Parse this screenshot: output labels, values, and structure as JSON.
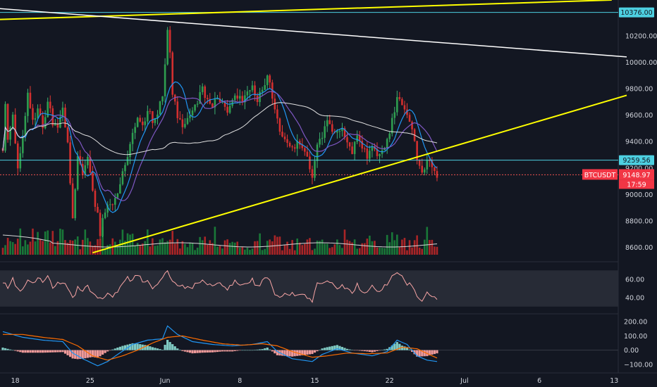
{
  "chart_data": {
    "type": "candlestick",
    "symbol_badge": "BTCUSDT",
    "price_badge": "9148.97",
    "countdown_badge": "17:59",
    "last_price": 9148.97,
    "horizontal_levels": [
      {
        "label": "10376.00",
        "value": 10376.0
      },
      {
        "label": "9259.56",
        "value": 9259.56
      }
    ],
    "price_axis": {
      "ticks": [
        "10200.00",
        "10000.00",
        "9800.00",
        "9600.00",
        "9400.00",
        "9200.00",
        "9000.00",
        "8800.00",
        "8600.00"
      ],
      "tick_values": [
        10200,
        10000,
        9800,
        9600,
        9400,
        9200,
        9000,
        8800,
        8600
      ],
      "range": [
        8545,
        10470
      ]
    },
    "rsi_panel": {
      "ticks": [
        "60.00",
        "40.00"
      ],
      "tick_values": [
        60,
        40
      ],
      "band": [
        30,
        70
      ],
      "range": [
        22,
        78
      ]
    },
    "macd_panel": {
      "ticks": [
        "200.00",
        "100.00",
        "0.00",
        "−100.00"
      ],
      "tick_values": [
        200,
        100,
        0,
        -100
      ],
      "range": [
        -150,
        245
      ]
    },
    "time_axis": {
      "ticks": [
        "18",
        "25",
        "Jun",
        "8",
        "15",
        "22",
        "Jul",
        "6",
        "13"
      ],
      "bar_index": [
        2.5,
        17.5,
        32.5,
        47.5,
        62.5,
        77.5,
        92.5,
        107.5,
        122.5
      ]
    },
    "trendlines": [
      {
        "color": "#ffff00",
        "from": [
          -23,
          10296
        ],
        "to": [
          122,
          10470
        ]
      },
      {
        "color": "#ffff00",
        "from": [
          18,
          8560
        ],
        "to": [
          125,
          9750
        ]
      },
      {
        "color": "#ffffff",
        "from": [
          -23,
          10470
        ],
        "to": [
          125,
          10040
        ]
      }
    ],
    "price_path": [
      [
        0,
        9350
      ],
      [
        0.5,
        9700
      ],
      [
        1,
        9400
      ],
      [
        2,
        9600
      ],
      [
        3,
        9200
      ],
      [
        4,
        9450
      ],
      [
        5,
        9750
      ],
      [
        6,
        9550
      ],
      [
        7,
        9650
      ],
      [
        8,
        9500
      ],
      [
        9,
        9700
      ],
      [
        10,
        9550
      ],
      [
        11,
        9500
      ],
      [
        12,
        9650
      ],
      [
        13,
        9400
      ],
      [
        14,
        8800
      ],
      [
        15,
        9300
      ],
      [
        16,
        9150
      ],
      [
        17,
        9300
      ],
      [
        18,
        9000
      ],
      [
        19,
        8850
      ],
      [
        19.5,
        8700
      ],
      [
        20,
        8800
      ],
      [
        21,
        8900
      ],
      [
        22,
        8950
      ],
      [
        23,
        9000
      ],
      [
        24,
        9150
      ],
      [
        25,
        9300
      ],
      [
        26,
        9450
      ],
      [
        27,
        9600
      ],
      [
        28,
        9500
      ],
      [
        29,
        9650
      ],
      [
        30,
        9550
      ],
      [
        31,
        9600
      ],
      [
        32,
        9750
      ],
      [
        33,
        10250
      ],
      [
        33.5,
        10100
      ],
      [
        34,
        9750
      ],
      [
        35,
        9600
      ],
      [
        36,
        9500
      ],
      [
        37,
        9550
      ],
      [
        38,
        9650
      ],
      [
        39,
        9700
      ],
      [
        40,
        9800
      ],
      [
        41,
        9700
      ],
      [
        42,
        9650
      ],
      [
        43,
        9750
      ],
      [
        44,
        9700
      ],
      [
        45,
        9600
      ],
      [
        46,
        9700
      ],
      [
        47,
        9750
      ],
      [
        48,
        9700
      ],
      [
        49,
        9750
      ],
      [
        50,
        9800
      ],
      [
        51,
        9700
      ],
      [
        52,
        9800
      ],
      [
        53,
        9900
      ],
      [
        54,
        9750
      ],
      [
        55,
        9550
      ],
      [
        56,
        9450
      ],
      [
        57,
        9400
      ],
      [
        58,
        9350
      ],
      [
        59,
        9400
      ],
      [
        60,
        9350
      ],
      [
        61,
        9300
      ],
      [
        62,
        9100
      ],
      [
        63,
        9350
      ],
      [
        64,
        9450
      ],
      [
        65,
        9550
      ],
      [
        66,
        9500
      ],
      [
        67,
        9450
      ],
      [
        68,
        9500
      ],
      [
        69,
        9400
      ],
      [
        70,
        9300
      ],
      [
        71,
        9450
      ],
      [
        72,
        9350
      ],
      [
        73,
        9300
      ],
      [
        74,
        9350
      ],
      [
        75,
        9300
      ],
      [
        76,
        9350
      ],
      [
        77,
        9400
      ],
      [
        78,
        9550
      ],
      [
        79,
        9750
      ],
      [
        80,
        9700
      ],
      [
        81,
        9600
      ],
      [
        82,
        9500
      ],
      [
        83,
        9250
      ],
      [
        84,
        9150
      ],
      [
        85,
        9250
      ],
      [
        86,
        9200
      ],
      [
        87,
        9149
      ]
    ],
    "rsi_path": [
      [
        0,
        58
      ],
      [
        1,
        52
      ],
      [
        2,
        60
      ],
      [
        3,
        50
      ],
      [
        4,
        48
      ],
      [
        5,
        60
      ],
      [
        6,
        55
      ],
      [
        7,
        64
      ],
      [
        8,
        55
      ],
      [
        9,
        62
      ],
      [
        10,
        52
      ],
      [
        11,
        55
      ],
      [
        12,
        58
      ],
      [
        13,
        50
      ],
      [
        14,
        38
      ],
      [
        15,
        52
      ],
      [
        16,
        46
      ],
      [
        17,
        52
      ],
      [
        18,
        44
      ],
      [
        19,
        37
      ],
      [
        20,
        40
      ],
      [
        21,
        44
      ],
      [
        22,
        42
      ],
      [
        23,
        48
      ],
      [
        24,
        55
      ],
      [
        25,
        62
      ],
      [
        26,
        58
      ],
      [
        27,
        66
      ],
      [
        28,
        58
      ],
      [
        29,
        60
      ],
      [
        30,
        52
      ],
      [
        31,
        56
      ],
      [
        32,
        62
      ],
      [
        33,
        70
      ],
      [
        34,
        58
      ],
      [
        35,
        52
      ],
      [
        36,
        55
      ],
      [
        37,
        50
      ],
      [
        38,
        52
      ],
      [
        39,
        56
      ],
      [
        40,
        60
      ],
      [
        41,
        54
      ],
      [
        42,
        52
      ],
      [
        43,
        58
      ],
      [
        44,
        54
      ],
      [
        45,
        50
      ],
      [
        46,
        56
      ],
      [
        47,
        58
      ],
      [
        48,
        54
      ],
      [
        49,
        56
      ],
      [
        50,
        60
      ],
      [
        51,
        52
      ],
      [
        52,
        58
      ],
      [
        53,
        64
      ],
      [
        54,
        50
      ],
      [
        55,
        40
      ],
      [
        56,
        44
      ],
      [
        57,
        42
      ],
      [
        58,
        45
      ],
      [
        59,
        42
      ],
      [
        60,
        44
      ],
      [
        61,
        40
      ],
      [
        62,
        36
      ],
      [
        63,
        55
      ],
      [
        64,
        58
      ],
      [
        65,
        60
      ],
      [
        66,
        54
      ],
      [
        67,
        50
      ],
      [
        68,
        56
      ],
      [
        69,
        48
      ],
      [
        70,
        44
      ],
      [
        71,
        54
      ],
      [
        72,
        46
      ],
      [
        73,
        48
      ],
      [
        74,
        52
      ],
      [
        75,
        48
      ],
      [
        76,
        50
      ],
      [
        77,
        56
      ],
      [
        78,
        66
      ],
      [
        79,
        70
      ],
      [
        80,
        64
      ],
      [
        81,
        56
      ],
      [
        82,
        52
      ],
      [
        83,
        40
      ],
      [
        84,
        36
      ],
      [
        85,
        44
      ],
      [
        86,
        42
      ],
      [
        87,
        40
      ]
    ],
    "macd_line": [
      [
        0,
        130
      ],
      [
        4,
        90
      ],
      [
        8,
        70
      ],
      [
        12,
        60
      ],
      [
        14,
        -20
      ],
      [
        16,
        -60
      ],
      [
        19,
        -110
      ],
      [
        21,
        -80
      ],
      [
        23,
        -30
      ],
      [
        26,
        40
      ],
      [
        29,
        70
      ],
      [
        32,
        80
      ],
      [
        33,
        170
      ],
      [
        35,
        110
      ],
      [
        38,
        60
      ],
      [
        42,
        40
      ],
      [
        46,
        30
      ],
      [
        50,
        40
      ],
      [
        53,
        60
      ],
      [
        55,
        -10
      ],
      [
        58,
        -60
      ],
      [
        62,
        -80
      ],
      [
        64,
        -30
      ],
      [
        67,
        10
      ],
      [
        70,
        -20
      ],
      [
        74,
        -40
      ],
      [
        77,
        -10
      ],
      [
        79,
        70
      ],
      [
        81,
        40
      ],
      [
        83,
        -40
      ],
      [
        85,
        -70
      ],
      [
        87,
        -80
      ]
    ],
    "signal_line": [
      [
        0,
        110
      ],
      [
        4,
        110
      ],
      [
        8,
        90
      ],
      [
        12,
        75
      ],
      [
        15,
        30
      ],
      [
        18,
        -40
      ],
      [
        21,
        -70
      ],
      [
        24,
        -40
      ],
      [
        27,
        0
      ],
      [
        30,
        50
      ],
      [
        33,
        90
      ],
      [
        36,
        100
      ],
      [
        40,
        70
      ],
      [
        44,
        45
      ],
      [
        48,
        35
      ],
      [
        52,
        45
      ],
      [
        55,
        30
      ],
      [
        58,
        -10
      ],
      [
        62,
        -50
      ],
      [
        65,
        -40
      ],
      [
        69,
        -20
      ],
      [
        73,
        -25
      ],
      [
        77,
        -20
      ],
      [
        80,
        20
      ],
      [
        83,
        10
      ],
      [
        86,
        -40
      ],
      [
        87,
        -55
      ]
    ]
  }
}
